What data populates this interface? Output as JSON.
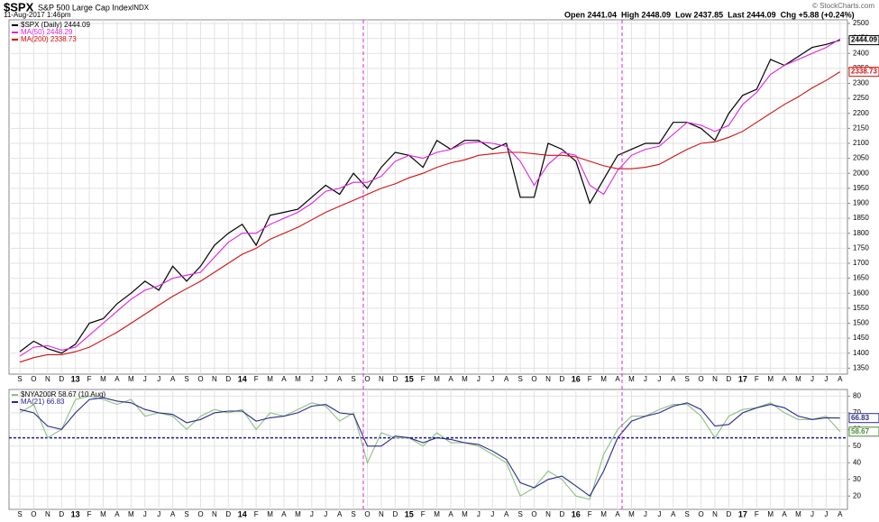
{
  "header": {
    "symbol": "$SPX",
    "name": "S&P 500 Large Cap Index",
    "exchange": "INDX",
    "date": "11-Aug-2017 1:46pm",
    "quote": "Open 2441.04  High 2448.09  Low 2437.85  Last 2444.09  Chg +5.88 (+0.24%)",
    "credit": "© StockCharts.com"
  },
  "chart_data": [
    {
      "type": "line",
      "categories": [
        "S",
        "O",
        "N",
        "D",
        "13",
        "F",
        "M",
        "A",
        "M",
        "J",
        "J",
        "A",
        "S",
        "O",
        "N",
        "D",
        "14",
        "F",
        "M",
        "A",
        "M",
        "J",
        "J",
        "A",
        "S",
        "O",
        "N",
        "D",
        "15",
        "F",
        "M",
        "A",
        "M",
        "J",
        "J",
        "A",
        "S",
        "O",
        "N",
        "D",
        "16",
        "F",
        "M",
        "A",
        "M",
        "J",
        "J",
        "A",
        "S",
        "O",
        "N",
        "D",
        "17",
        "F",
        "M",
        "A",
        "M",
        "J",
        "J",
        "A"
      ],
      "ylim": [
        1330,
        2512
      ],
      "yticks": [
        1350,
        1400,
        1450,
        1500,
        1550,
        1600,
        1650,
        1700,
        1750,
        1800,
        1850,
        1900,
        1950,
        2000,
        2050,
        2100,
        2150,
        2200,
        2250,
        2300,
        2350,
        2400,
        2450,
        2500
      ],
      "grid": true,
      "series": [
        {
          "name": "$SPX (Daily) 2444.09",
          "color": "#000000",
          "values": [
            1405,
            1440,
            1415,
            1400,
            1430,
            1500,
            1515,
            1565,
            1600,
            1640,
            1610,
            1690,
            1640,
            1690,
            1760,
            1800,
            1830,
            1760,
            1860,
            1870,
            1880,
            1920,
            1960,
            1930,
            2000,
            1950,
            2020,
            2070,
            2060,
            2020,
            2110,
            2080,
            2110,
            2110,
            2080,
            2100,
            1920,
            1920,
            2100,
            2080,
            2040,
            1900,
            1980,
            2060,
            2080,
            2100,
            2100,
            2170,
            2170,
            2150,
            2110,
            2200,
            2260,
            2280,
            2380,
            2360,
            2390,
            2420,
            2430,
            2444.09
          ]
        },
        {
          "name": "MA(50) 2448.29",
          "color": "#e020e0",
          "values": [
            1390,
            1420,
            1425,
            1410,
            1420,
            1460,
            1500,
            1540,
            1580,
            1610,
            1625,
            1650,
            1660,
            1670,
            1720,
            1770,
            1800,
            1800,
            1830,
            1850,
            1870,
            1900,
            1940,
            1950,
            1970,
            1970,
            1990,
            2040,
            2060,
            2050,
            2070,
            2080,
            2100,
            2105,
            2100,
            2090,
            2040,
            1960,
            2030,
            2070,
            2060,
            1960,
            1930,
            2010,
            2060,
            2080,
            2090,
            2130,
            2170,
            2160,
            2140,
            2160,
            2230,
            2270,
            2330,
            2360,
            2380,
            2400,
            2420,
            2448.29
          ]
        },
        {
          "name": "MA(200) 2338.73",
          "color": "#d01010",
          "values": [
            1370,
            1385,
            1395,
            1395,
            1405,
            1420,
            1445,
            1470,
            1500,
            1530,
            1560,
            1590,
            1615,
            1640,
            1670,
            1700,
            1730,
            1750,
            1780,
            1800,
            1820,
            1845,
            1870,
            1890,
            1910,
            1930,
            1950,
            1965,
            1985,
            2000,
            2020,
            2035,
            2045,
            2060,
            2065,
            2070,
            2070,
            2065,
            2060,
            2060,
            2055,
            2040,
            2025,
            2015,
            2015,
            2020,
            2030,
            2055,
            2080,
            2100,
            2105,
            2120,
            2140,
            2170,
            2200,
            2230,
            2255,
            2285,
            2310,
            2338.73
          ]
        }
      ],
      "end_tags": [
        {
          "value": 2444.09,
          "color": "#000000"
        },
        {
          "value": 2338.73,
          "color": "#d01010"
        }
      ]
    },
    {
      "type": "line",
      "categories": [
        "S",
        "O",
        "N",
        "D",
        "13",
        "F",
        "M",
        "A",
        "M",
        "J",
        "J",
        "A",
        "S",
        "O",
        "N",
        "D",
        "14",
        "F",
        "M",
        "A",
        "M",
        "J",
        "J",
        "A",
        "S",
        "O",
        "N",
        "D",
        "15",
        "F",
        "M",
        "A",
        "M",
        "J",
        "J",
        "A",
        "S",
        "O",
        "N",
        "D",
        "16",
        "F",
        "M",
        "A",
        "M",
        "J",
        "J",
        "A",
        "S",
        "O",
        "N",
        "D",
        "17",
        "F",
        "M",
        "A",
        "M",
        "J",
        "J",
        "A"
      ],
      "ylim": [
        12,
        84
      ],
      "yticks": [
        20,
        30,
        40,
        50,
        60,
        70,
        80
      ],
      "grid": true,
      "hline": 55,
      "series": [
        {
          "name": "$NYA200R 58.67 (10 Aug)",
          "color": "#8fbf7f",
          "values": [
            70,
            75,
            55,
            60,
            78,
            80,
            78,
            75,
            78,
            68,
            70,
            68,
            60,
            68,
            72,
            70,
            72,
            60,
            70,
            68,
            72,
            76,
            74,
            65,
            70,
            40,
            58,
            55,
            55,
            50,
            58,
            52,
            52,
            50,
            45,
            40,
            20,
            25,
            35,
            30,
            20,
            18,
            45,
            60,
            68,
            68,
            72,
            75,
            75,
            68,
            55,
            68,
            72,
            73,
            76,
            70,
            66,
            66,
            68,
            58.67
          ]
        },
        {
          "name": "MA(21) 66.83",
          "color": "#2a2a8a",
          "values": [
            72,
            70,
            62,
            60,
            70,
            78,
            79,
            77,
            76,
            72,
            70,
            69,
            64,
            66,
            70,
            71,
            71,
            65,
            67,
            68,
            70,
            74,
            75,
            70,
            69,
            50,
            50,
            56,
            55,
            52,
            55,
            54,
            52,
            51,
            47,
            42,
            28,
            25,
            30,
            32,
            26,
            20,
            35,
            55,
            65,
            68,
            70,
            74,
            76,
            72,
            62,
            63,
            70,
            73,
            75,
            73,
            68,
            66,
            67,
            66.83
          ]
        }
      ],
      "end_tags": [
        {
          "value": 66.83,
          "color": "#2a2a8a"
        },
        {
          "value": 58.67,
          "color": "#4a8a3a"
        }
      ]
    }
  ]
}
